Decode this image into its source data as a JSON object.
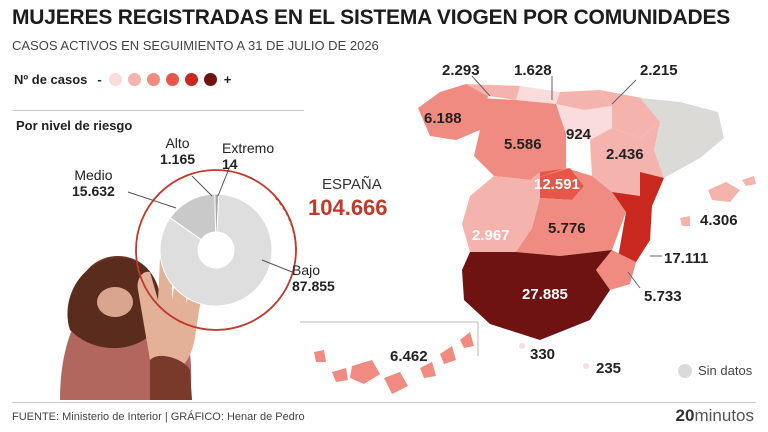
{
  "title": "MUJERES REGISTRADAS EN EL SISTEMA VIOGEN POR COMUNIDADES",
  "subtitle": "CASOS ACTIVOS EN SEGUIMIENTO A 31 DE JULIO DE 2026",
  "legend": {
    "label": "Nº de casos",
    "minus": "-",
    "plus": "+",
    "colors": [
      "#fadcdc",
      "#f5b3ad",
      "#ef8b80",
      "#e6574a",
      "#c8281e",
      "#6e1212"
    ]
  },
  "risk": {
    "title": "Por nivel de riesgo",
    "total_label": "ESPAÑA",
    "total_value": "104.666"
  },
  "chart_data": [
    {
      "type": "pie",
      "title": "Por nivel de riesgo",
      "slices": [
        {
          "name": "Bajo",
          "value": 87855,
          "label": "87.855",
          "color": "#dedede"
        },
        {
          "name": "Medio",
          "value": 15632,
          "label": "15.632",
          "color": "#c9c9c9"
        },
        {
          "name": "Alto",
          "value": 1165,
          "label": "1.165",
          "color": "#a8a8a8"
        },
        {
          "name": "Extremo",
          "value": 14,
          "label": "14",
          "color": "#555555"
        }
      ],
      "total": "104.666"
    },
    {
      "type": "table",
      "regions": [
        {
          "value": "6.188"
        },
        {
          "value": "2.293"
        },
        {
          "value": "1.628"
        },
        {
          "value": "2.215"
        },
        {
          "value": "924"
        },
        {
          "value": "5.586"
        },
        {
          "value": "2.436"
        },
        {
          "value": "12.591"
        },
        {
          "value": "2.967"
        },
        {
          "value": "5.776"
        },
        {
          "value": "17.111"
        },
        {
          "value": "4.306"
        },
        {
          "value": "27.885"
        },
        {
          "value": "5.733"
        },
        {
          "value": "6.462"
        },
        {
          "value": "330"
        },
        {
          "value": "235"
        }
      ],
      "no_data_label": "Sin datos"
    }
  ],
  "footer": {
    "source": "FUENTE: Ministerio de Interior  |  GRÁFICO: Henar de Pedro",
    "brand_num": "20",
    "brand_text": "minutos"
  }
}
